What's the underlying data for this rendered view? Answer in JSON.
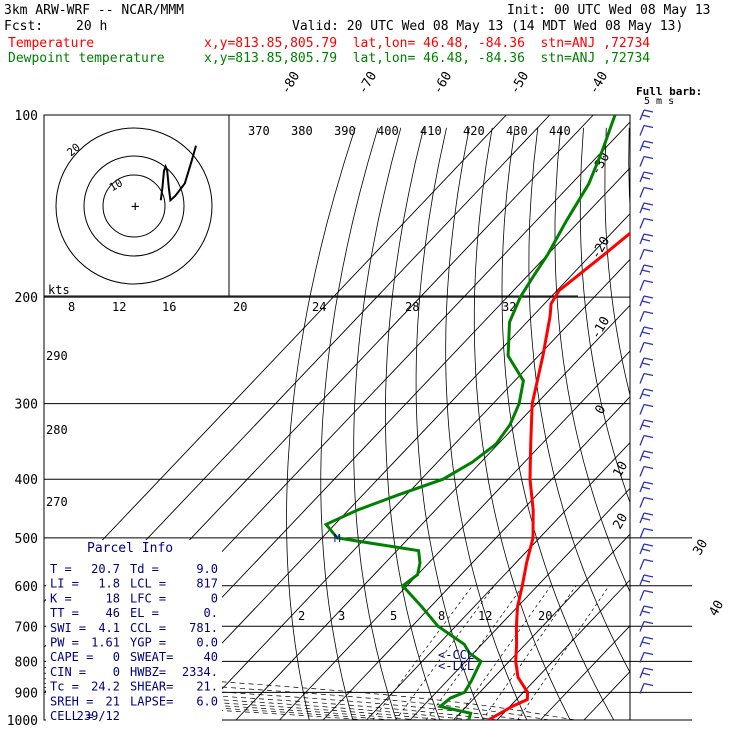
{
  "header": {
    "model": "3km ARW-WRF -- NCAR/MMM",
    "init": "Init: 00 UTC Wed 08 May 13",
    "fcst_label": "Fcst:",
    "fcst_value": "20 h",
    "valid": "Valid: 20 UTC Wed 08 May 13 (14 MDT Wed 08 May 13)",
    "temp_label": "Temperature",
    "temp_loc": "x,y=813.85,805.79  lat,lon= 46.48, -84.36  stn=ANJ ,72734",
    "dew_label": "Dewpoint temperature",
    "dew_loc": "x,y=813.85,805.79  lat,lon= 46.48, -84.36  stn=ANJ ,72734"
  },
  "colors": {
    "temperature": "#ff0000",
    "dewpoint": "#008000",
    "info": "#000080",
    "barbs": "#3030c0"
  },
  "barb_legend": {
    "line1": "Full barb:",
    "line2": "5 m s"
  },
  "chart_data": {
    "type": "line",
    "pressure_ticks": [
      "100",
      "200",
      "300",
      "400",
      "500",
      "600",
      "700",
      "800",
      "900",
      "1000"
    ],
    "pressure_levels": [
      100,
      200,
      300,
      400,
      500,
      600,
      700,
      800,
      900,
      1000
    ],
    "skew_isotherm_labels": [
      "-80",
      "-70",
      "-60",
      "-50",
      "-40",
      "-30",
      "-20",
      "-10",
      "0",
      "10",
      "20",
      "30",
      "40"
    ],
    "theta_labels": [
      "370",
      "380",
      "390",
      "400",
      "410",
      "420",
      "430",
      "440"
    ],
    "theta_e_labels": [
      "290",
      "280",
      "270"
    ],
    "mixing_ratio_labels": [
      "2",
      "3",
      "5",
      "8",
      "12",
      "20"
    ],
    "hodograph_speed_labels": [
      "kts",
      "8",
      "12",
      "16",
      "20",
      "24",
      "28",
      "32"
    ],
    "hodograph_ring_labels": [
      "20",
      "10"
    ],
    "series": [
      {
        "name": "Temperature",
        "p": [
          1000,
          970,
          950,
          925,
          900,
          850,
          800,
          750,
          700,
          650,
          600,
          550,
          500,
          450,
          400,
          350,
          300,
          250,
          215,
          205,
          195,
          170,
          150,
          130,
          115,
          100
        ],
        "t": [
          18.0,
          19.5,
          20.5,
          22.5,
          21.0,
          15.5,
          11.5,
          8.0,
          4.0,
          0.0,
          -3.5,
          -7.5,
          -11.5,
          -17.5,
          -25.0,
          -32.5,
          -41.0,
          -49.0,
          -56.0,
          -58.5,
          -59.5,
          -57.0,
          -55.0,
          -53.0,
          -54.0,
          -57.0
        ]
      },
      {
        "name": "Dewpoint temperature",
        "p": [
          1000,
          975,
          950,
          920,
          900,
          860,
          830,
          800,
          775,
          750,
          700,
          650,
          600,
          575,
          550,
          525,
          500,
          475,
          450,
          425,
          400,
          375,
          350,
          325,
          300,
          275,
          250,
          220,
          200,
          185,
          170,
          150,
          130,
          115,
          100
        ],
        "t": [
          13.5,
          12.5,
          4.0,
          4.5,
          6.5,
          5.5,
          4.5,
          3.5,
          -1.0,
          -4.0,
          -14.0,
          -22.0,
          -31.0,
          -30.0,
          -32.0,
          -35.0,
          -56.5,
          -62.0,
          -58.0,
          -52.0,
          -45.0,
          -42.0,
          -40.5,
          -41.5,
          -44.0,
          -48.0,
          -57.0,
          -64.0,
          -67.0,
          -68.5,
          -70.0,
          -73.0,
          -76.0,
          -80.0,
          -85.0
        ]
      }
    ],
    "parcel": {
      "type": "parcel",
      "p": [
        955,
        850,
        770,
        700,
        600,
        500,
        400,
        300,
        200
      ],
      "t": [
        20.7,
        12.0,
        5.5,
        2.0,
        -6.0,
        -15.0,
        -26.0,
        -42.0,
        -63.0
      ]
    },
    "markers": [
      "<-CCL",
      "<-LCL",
      "M"
    ],
    "parcel_info": {
      "title": "Parcel Info",
      "rows": [
        [
          "T   =",
          "20.7",
          "Td  =",
          "9.0"
        ],
        [
          "LI  =",
          "1.8",
          "LCL =",
          "817"
        ],
        [
          "K   =",
          "18",
          "LFC =",
          "0"
        ],
        [
          "TT  =",
          "46",
          "EL  =",
          "0."
        ],
        [
          "SWI =",
          "4.1",
          "CCL =",
          "781."
        ],
        [
          "PW  =",
          "1.61",
          "YGP =",
          "0.0"
        ],
        [
          "CAPE =",
          "0",
          "SWEAT=",
          "40"
        ],
        [
          "CIN  =",
          "0",
          "HWBZ=",
          "2334."
        ],
        [
          "Tc   =",
          "24.2",
          "SHEAR=",
          "21."
        ],
        [
          "SREH =",
          "21",
          "LAPSE=",
          "6.0"
        ],
        [
          "CELL =",
          "239/12",
          "",
          ""
        ]
      ]
    },
    "hodograph": {
      "u": [
        -3,
        -4,
        -5,
        -6,
        -7,
        -8,
        -9,
        -12,
        -14,
        -16,
        -18,
        -22,
        -25
      ],
      "v": [
        -1,
        2,
        6,
        7,
        6,
        2,
        -1,
        0,
        1,
        2,
        3,
        8,
        12
      ]
    }
  }
}
